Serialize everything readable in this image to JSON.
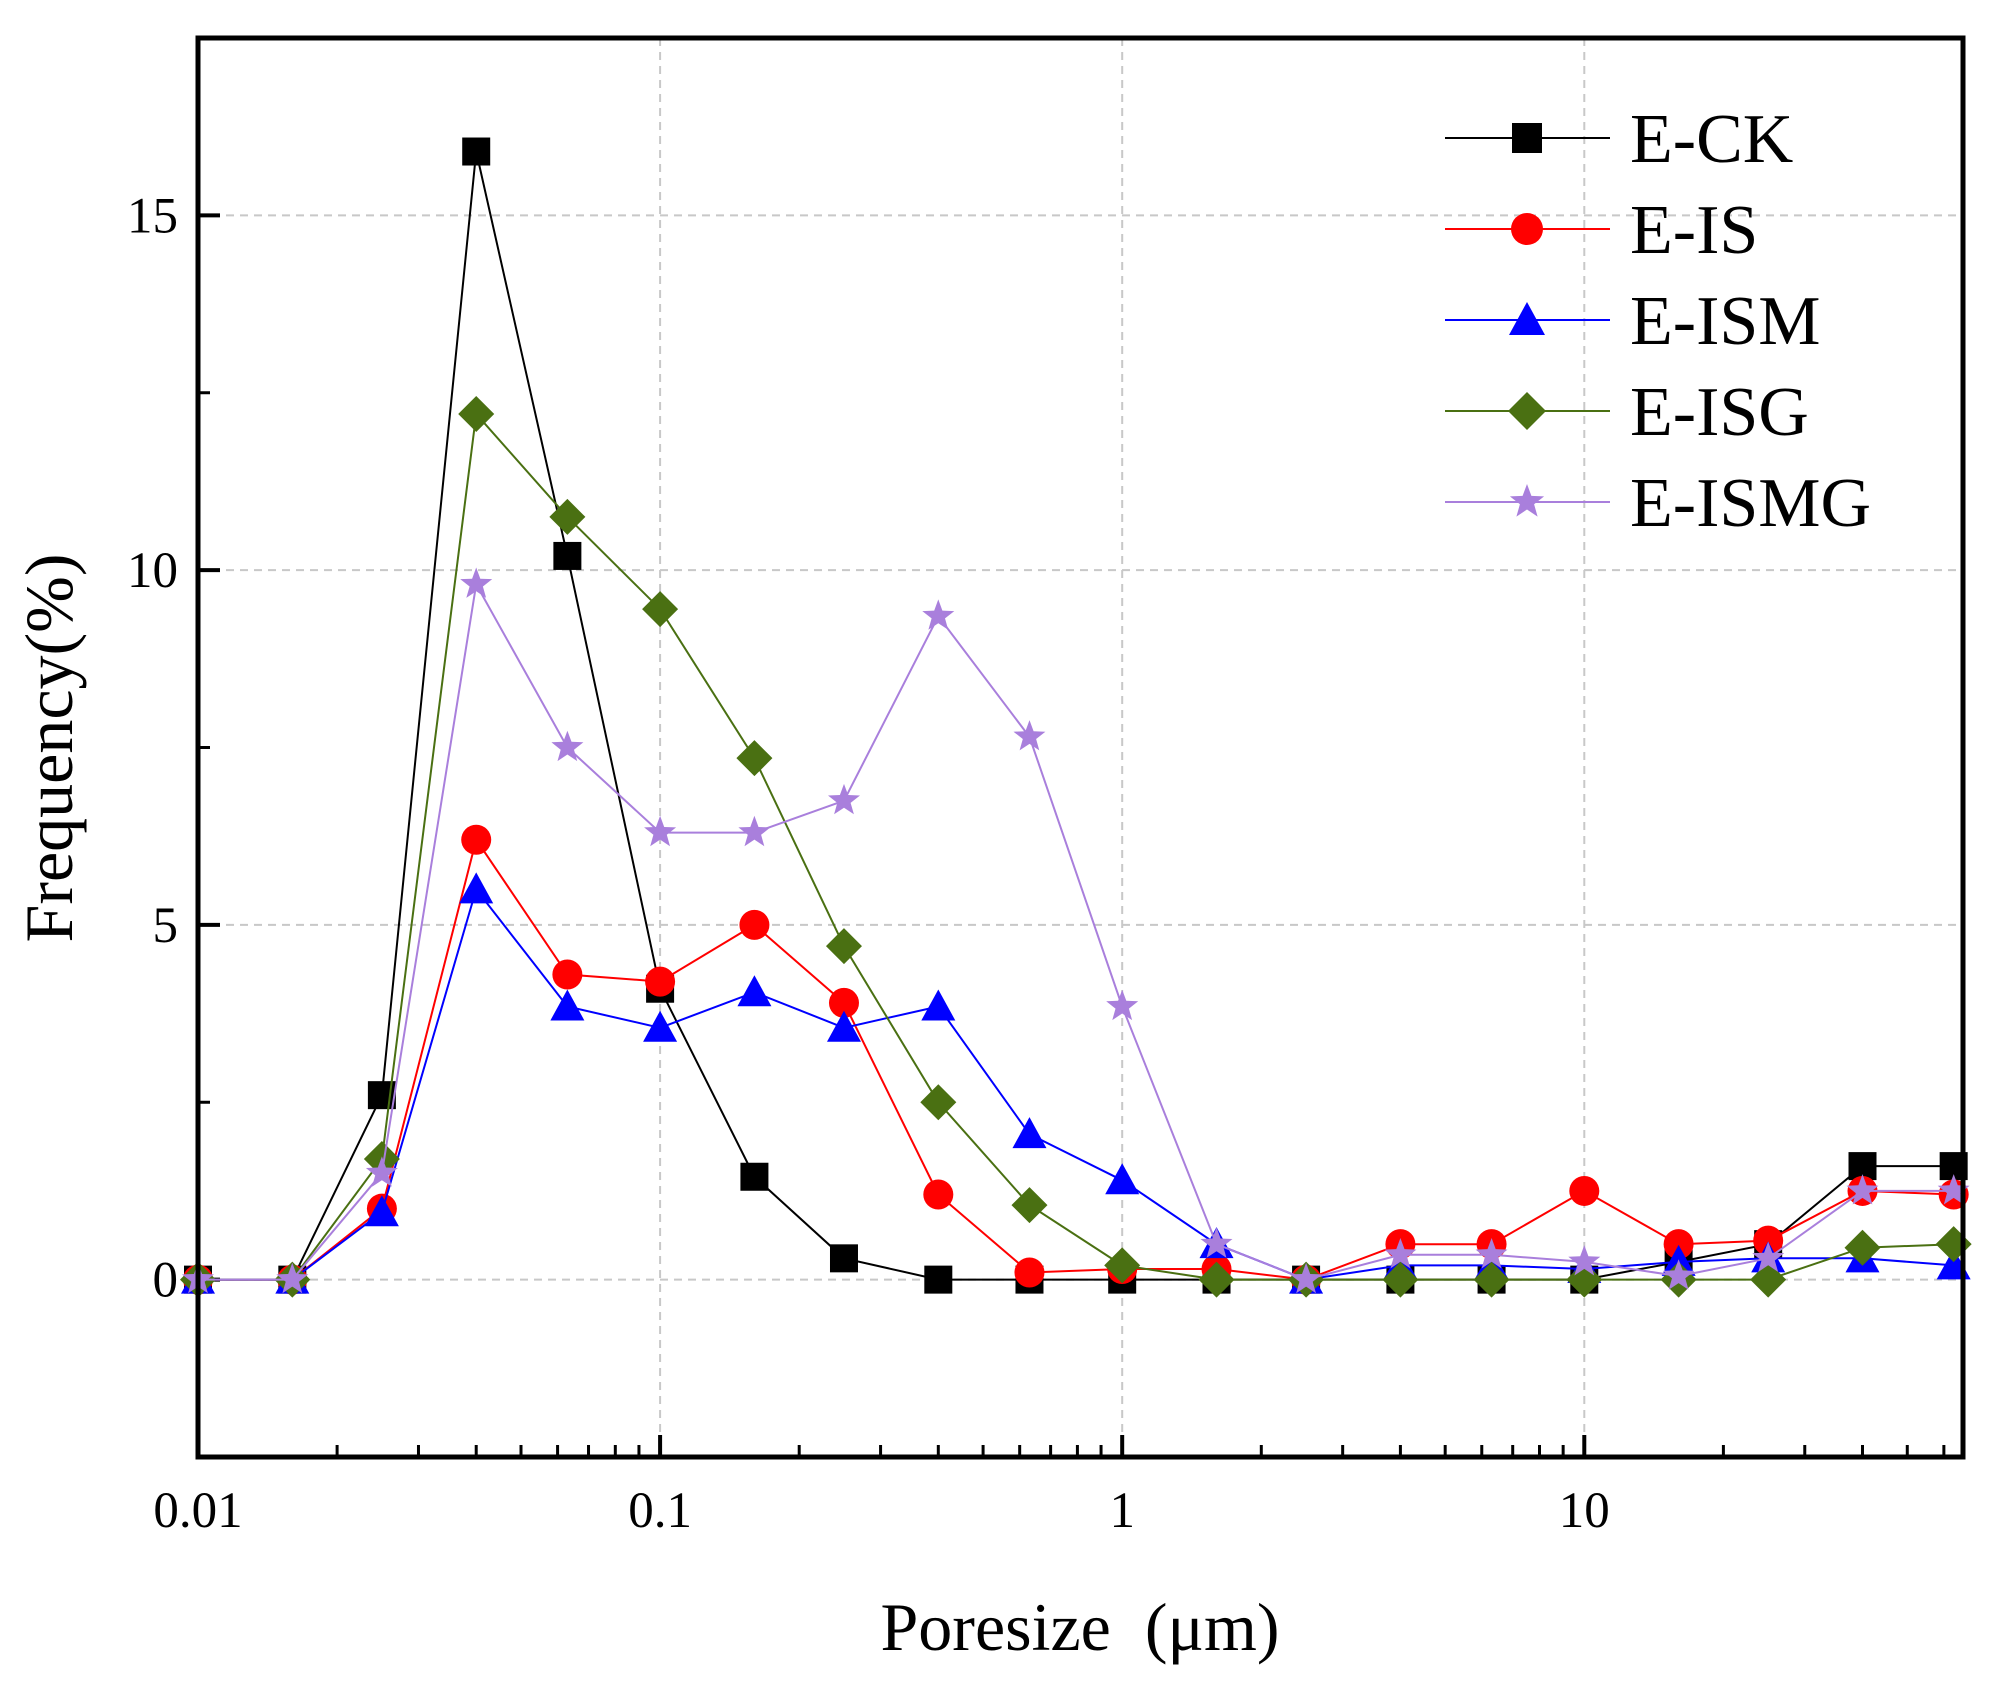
{
  "chart_data": {
    "type": "line",
    "title": "",
    "xlabel": "Poresize  (μm)",
    "ylabel": "Frequency(%)",
    "xscale": "log",
    "xlim": [
      0.01,
      66
    ],
    "ylim": [
      -2.5,
      17.5
    ],
    "grid": true,
    "legend_position": "top-right",
    "x_ticks": [
      {
        "v": 0.01,
        "label": "0.01"
      },
      {
        "v": 0.1,
        "label": "0.1"
      },
      {
        "v": 1,
        "label": "1"
      },
      {
        "v": 10,
        "label": "10"
      }
    ],
    "y_ticks": [
      {
        "v": 0,
        "label": "0"
      },
      {
        "v": 5,
        "label": "5"
      },
      {
        "v": 10,
        "label": "10"
      },
      {
        "v": 15,
        "label": "15"
      }
    ],
    "x": [
      0.01,
      0.016,
      0.025,
      0.04,
      0.063,
      0.1,
      0.16,
      0.25,
      0.4,
      0.63,
      1,
      1.6,
      2.5,
      4,
      6.3,
      10,
      16,
      25,
      40,
      63
    ],
    "series": [
      {
        "name": "E-CK",
        "color": "#000000",
        "marker": "square",
        "values": [
          0,
          0,
          2.6,
          15.9,
          10.2,
          4.1,
          1.45,
          0.3,
          0,
          0,
          0,
          0,
          0,
          0,
          0,
          0,
          0.25,
          0.5,
          1.6,
          1.6
        ]
      },
      {
        "name": "E-IS",
        "color": "#ff0000",
        "marker": "circle",
        "values": [
          0,
          0,
          1.0,
          6.2,
          4.3,
          4.2,
          5.0,
          3.9,
          1.2,
          0.1,
          0.15,
          0.15,
          0,
          0.5,
          0.5,
          1.25,
          0.5,
          0.55,
          1.25,
          1.2
        ]
      },
      {
        "name": "E-ISM",
        "color": "#0000ff",
        "marker": "triangle",
        "values": [
          0,
          0,
          0.95,
          5.5,
          3.85,
          3.55,
          4.05,
          3.55,
          3.85,
          2.05,
          1.4,
          0.5,
          0,
          0.2,
          0.2,
          0.15,
          0.25,
          0.3,
          0.3,
          0.2
        ]
      },
      {
        "name": "E-ISG",
        "color": "#4a7012",
        "marker": "diamond",
        "values": [
          0,
          0,
          1.7,
          12.2,
          10.75,
          9.45,
          7.35,
          4.7,
          2.5,
          1.05,
          0.2,
          0,
          0,
          0,
          0,
          0,
          0,
          0,
          0.45,
          0.5
        ]
      },
      {
        "name": "E-ISMG",
        "color": "#a97fdc",
        "marker": "star",
        "values": [
          0,
          0,
          1.5,
          9.8,
          7.5,
          6.3,
          6.3,
          6.75,
          9.35,
          7.65,
          3.85,
          0.5,
          0,
          0.35,
          0.35,
          0.25,
          0.05,
          0.3,
          1.25,
          1.25
        ]
      }
    ]
  }
}
